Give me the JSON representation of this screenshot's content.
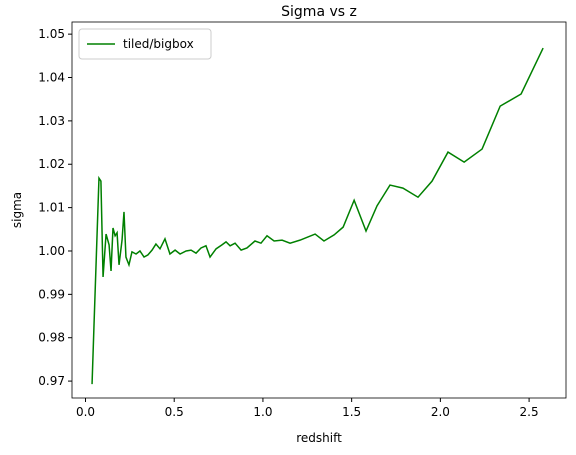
{
  "chart_data": {
    "type": "line",
    "title": "Sigma vs z",
    "xlabel": "redshift",
    "ylabel": "sigma",
    "x": [
      0.037,
      0.048,
      0.076,
      0.087,
      0.099,
      0.116,
      0.133,
      0.144,
      0.155,
      0.167,
      0.178,
      0.189,
      0.206,
      0.217,
      0.228,
      0.245,
      0.262,
      0.285,
      0.307,
      0.33,
      0.352,
      0.375,
      0.397,
      0.42,
      0.448,
      0.476,
      0.505,
      0.533,
      0.567,
      0.595,
      0.623,
      0.651,
      0.679,
      0.702,
      0.736,
      0.769,
      0.792,
      0.815,
      0.843,
      0.877,
      0.91,
      0.955,
      0.989,
      1.023,
      1.063,
      1.108,
      1.153,
      1.209,
      1.294,
      1.344,
      1.401,
      1.452,
      1.514,
      1.581,
      1.643,
      1.716,
      1.789,
      1.874,
      1.953,
      2.043,
      2.134,
      2.235,
      2.337,
      2.455,
      2.579
    ],
    "series": [
      {
        "name": "tiled/bigbox",
        "color": "#008000",
        "values": [
          0.9693,
          0.9829,
          1.0168,
          1.0161,
          0.994,
          1.0039,
          1.0014,
          0.9954,
          1.0053,
          1.0035,
          1.0042,
          0.9968,
          1.0025,
          1.009,
          0.9986,
          0.9968,
          0.9998,
          0.9993,
          1.0,
          0.9986,
          0.9991,
          1.0002,
          1.0016,
          1.0005,
          1.0028,
          0.9993,
          1.0002,
          0.9993,
          1.0,
          1.0002,
          0.9995,
          1.0007,
          1.0012,
          0.9986,
          1.0005,
          1.0014,
          1.0021,
          1.0012,
          1.0018,
          1.0002,
          1.0007,
          1.0023,
          1.0018,
          1.0035,
          1.0023,
          1.0025,
          1.0018,
          1.0025,
          1.0039,
          1.0023,
          1.0037,
          1.0055,
          1.0117,
          1.0046,
          1.0104,
          1.0152,
          1.0145,
          1.0124,
          1.0161,
          1.0228,
          1.0205,
          1.0235,
          1.0334,
          1.0362,
          1.0468
        ]
      }
    ],
    "xlim": [
      -0.076,
      2.708
    ],
    "ylim": [
      0.9661,
      1.0528
    ],
    "xticks": [
      {
        "value": 0,
        "label": "0.0"
      },
      0.5,
      {
        "value": 1,
        "label": "1.0"
      },
      1.5,
      {
        "value": 2,
        "label": "2.0"
      },
      2.5
    ],
    "yticks": [
      0.97,
      0.98,
      0.99,
      {
        "value": 1,
        "label": "1.00"
      },
      1.01,
      1.02,
      1.03,
      1.04,
      1.05
    ],
    "legend": "upper left"
  }
}
